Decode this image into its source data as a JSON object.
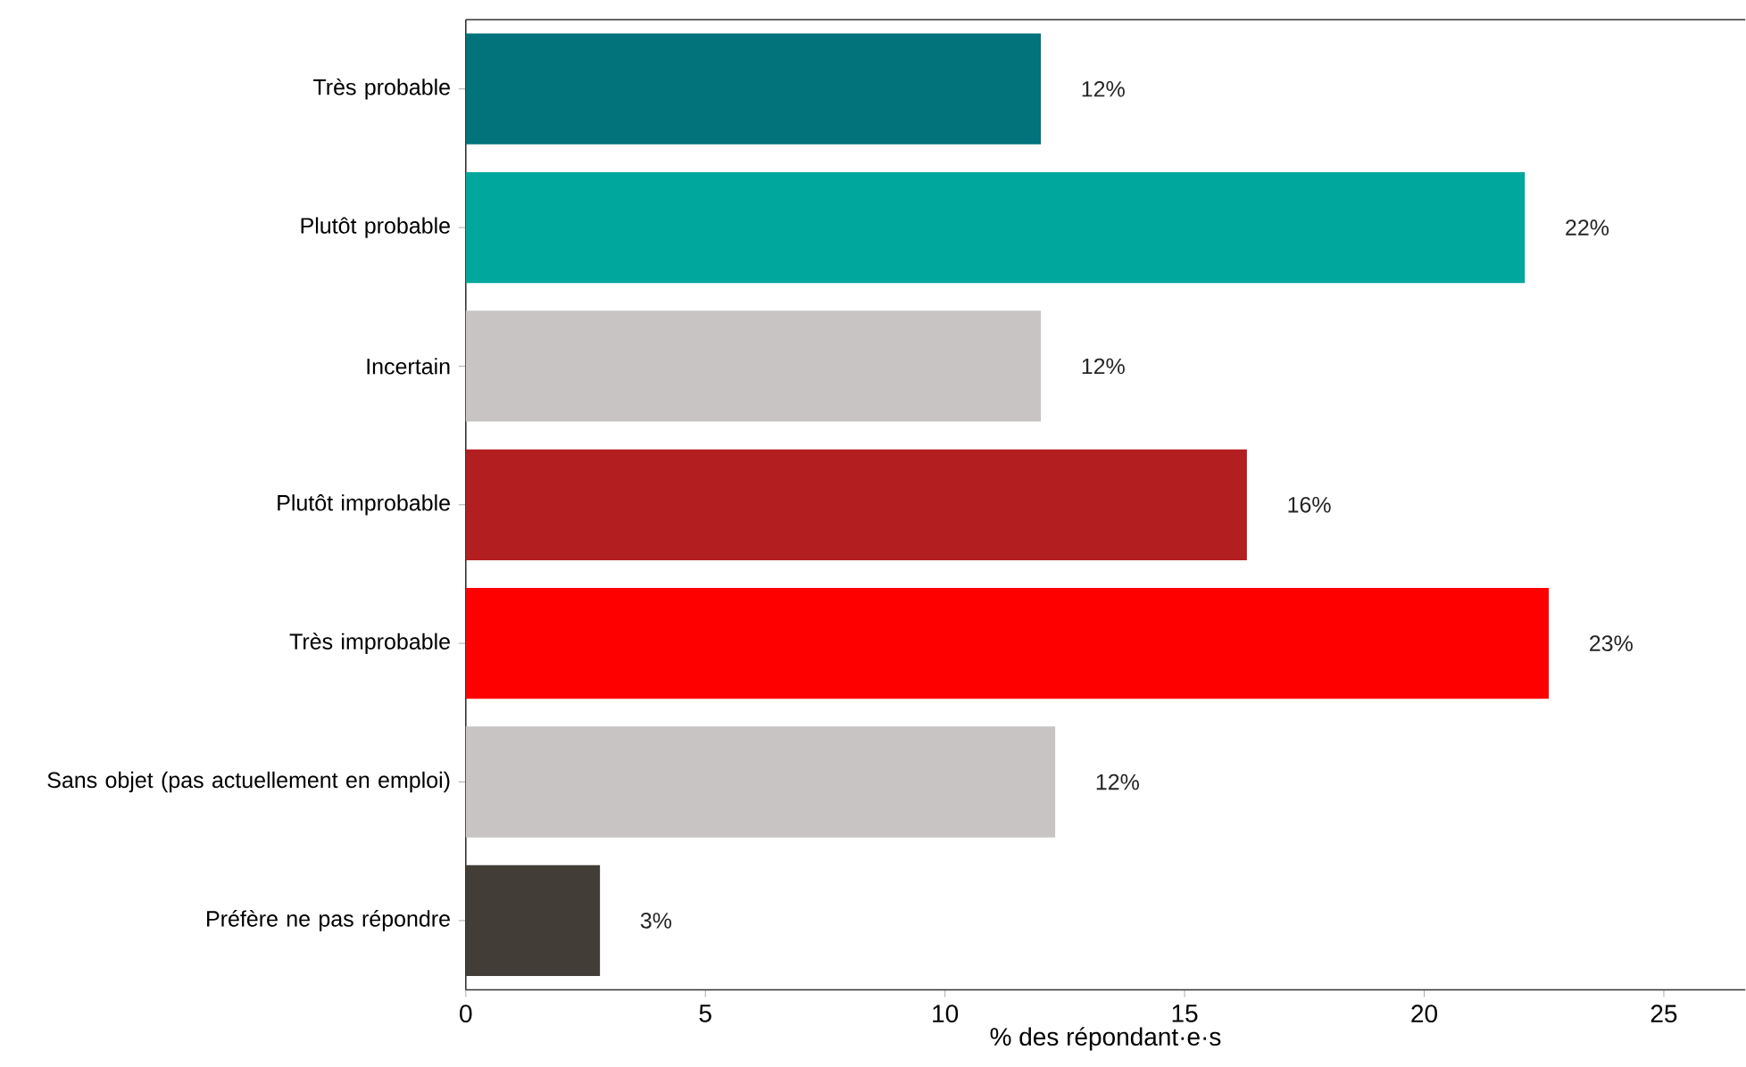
{
  "chart_data": {
    "type": "bar",
    "orientation": "horizontal",
    "xlabel": "% des répondant·e·s",
    "categories": [
      "Très probable",
      "Plutôt probable",
      "Incertain",
      "Plutôt improbable",
      "Très improbable",
      "Sans objet (pas actuellement en emploi)",
      "Préfère ne pas répondre"
    ],
    "values": [
      12.0,
      22.1,
      12.0,
      16.3,
      22.6,
      12.3,
      2.8
    ],
    "value_labels": [
      "12%",
      "22%",
      "12%",
      "16%",
      "23%",
      "12%",
      "3%"
    ],
    "colors": [
      "#02727b",
      "#00a79d",
      "#c7c4c3",
      "#b31e20",
      "#ff0000",
      "#c7c4c3",
      "#433d38"
    ],
    "xlim": [
      0,
      26.7
    ],
    "xticks": [
      0,
      5,
      10,
      15,
      20,
      25
    ]
  }
}
